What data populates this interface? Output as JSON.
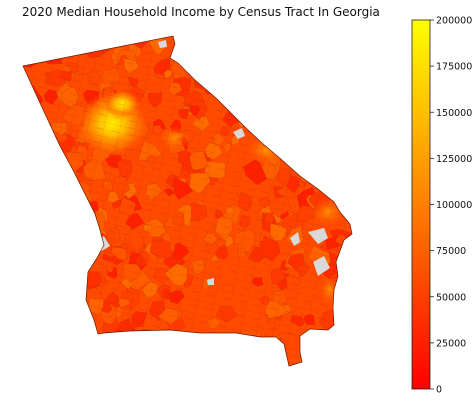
{
  "title": "2020 Median Household Income by Census Tract In Georgia",
  "colorbar": {
    "min": 0,
    "max": 200000,
    "ticks": [
      "0",
      "25000",
      "50000",
      "75000",
      "100000",
      "125000",
      "150000",
      "175000",
      "200000"
    ],
    "tick_values": [
      0,
      25000,
      50000,
      75000,
      100000,
      125000,
      150000,
      175000,
      200000
    ],
    "colormap": "autumn",
    "color_low": "#ff0000",
    "color_high": "#ffff00"
  },
  "map": {
    "region": "Georgia",
    "unit": "census tract",
    "missing_color": "#d9d9d9",
    "edge_color": "#555555"
  }
}
